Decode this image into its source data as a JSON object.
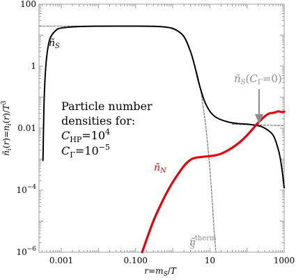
{
  "chart_data": {
    "type": "line",
    "xscale": "log",
    "yscale": "log",
    "xlim": [
      0.00025,
      1000
    ],
    "ylim": [
      1e-06,
      100
    ],
    "xlabel": "r=m_S/T",
    "ylabel": "ñ_i(r)=n_i(r)/T^3",
    "x_tick_labels": [
      {
        "v": 0.001,
        "label": "0.001"
      },
      {
        "v": 0.1,
        "label": "0.100"
      },
      {
        "v": 10,
        "label": "10"
      },
      {
        "v": 1000,
        "label": "1000"
      }
    ],
    "y_tick_labels": [
      {
        "v": 100,
        "label": "100"
      },
      {
        "v": 1,
        "label": "1"
      },
      {
        "v": 0.01,
        "label": "0.01"
      },
      {
        "v": 0.0001,
        "label": "10^{-4}"
      },
      {
        "v": 1e-06,
        "label": "10^{-6}"
      }
    ],
    "annotation": {
      "lines": [
        "Particle number",
        "densities for:"
      ],
      "chp": "C_HP=10^4",
      "cgamma": "C_Γ=10^{-5}"
    },
    "labels": {
      "nS": "ñ_S",
      "nN": "ñ_N",
      "nS_cgamma0": "ñ_S(C_Γ=0)",
      "nS_therm": "ñ_S^therm"
    },
    "colors": {
      "nS": "#000000",
      "nN": "#e8000b",
      "dashed": "#7f7f7f",
      "arrow": "#8c8c8c"
    },
    "series": [
      {
        "name": "ñ_S",
        "color": "#000000",
        "points": [
          [
            0.00032,
            0.0009
          ],
          [
            0.00034,
            0.05
          ],
          [
            0.00037,
            0.6
          ],
          [
            0.00042,
            3
          ],
          [
            0.0005,
            8
          ],
          [
            0.0007,
            14
          ],
          [
            0.001,
            17
          ],
          [
            0.003,
            19
          ],
          [
            0.01,
            19.5
          ],
          [
            0.1,
            19.6
          ],
          [
            0.3,
            19.3
          ],
          [
            0.7,
            18
          ],
          [
            1.2,
            15
          ],
          [
            2,
            9
          ],
          [
            3,
            3
          ],
          [
            4,
            0.9
          ],
          [
            5,
            0.3
          ],
          [
            7,
            0.08
          ],
          [
            10,
            0.035
          ],
          [
            15,
            0.022
          ],
          [
            30,
            0.016
          ],
          [
            60,
            0.014
          ],
          [
            100,
            0.0135
          ],
          [
            200,
            0.012
          ],
          [
            300,
            0.01
          ],
          [
            500,
            0.006
          ],
          [
            700,
            0.002
          ],
          [
            850,
            0.0006
          ],
          [
            1000,
            0.00012
          ]
        ]
      },
      {
        "name": "ñ_N",
        "color": "#e8000b",
        "points": [
          [
            0.15,
            1e-06
          ],
          [
            0.3,
            1e-05
          ],
          [
            0.6,
            6e-05
          ],
          [
            1,
            0.00018
          ],
          [
            2,
            0.0006
          ],
          [
            3,
            0.00095
          ],
          [
            4,
            0.0011
          ],
          [
            6,
            0.00118
          ],
          [
            10,
            0.00125
          ],
          [
            15,
            0.00135
          ],
          [
            20,
            0.0015
          ],
          [
            30,
            0.0019
          ],
          [
            50,
            0.0028
          ],
          [
            80,
            0.0045
          ],
          [
            120,
            0.0075
          ],
          [
            200,
            0.015
          ],
          [
            300,
            0.024
          ],
          [
            400,
            0.03
          ],
          [
            500,
            0.031
          ],
          [
            600,
            0.033
          ],
          [
            700,
            0.035
          ],
          [
            850,
            0.033
          ],
          [
            1000,
            0.034
          ]
        ]
      },
      {
        "name": "ñ_S(C_Γ=0)",
        "color": "#7f7f7f",
        "dashed": true,
        "points": [
          [
            40,
            0.0135
          ],
          [
            100,
            0.013
          ],
          [
            300,
            0.0125
          ],
          [
            1000,
            0.012
          ]
        ]
      },
      {
        "name": "ñ_S^therm",
        "color": "#7f7f7f",
        "dashed": true,
        "points": [
          [
            0.00026,
            19.6
          ],
          [
            0.001,
            19.6
          ],
          [
            0.1,
            19.6
          ],
          [
            0.5,
            19
          ],
          [
            1,
            16
          ],
          [
            2,
            9
          ],
          [
            3,
            3
          ],
          [
            5,
            0.35
          ],
          [
            7,
            0.03
          ],
          [
            9,
            0.002
          ],
          [
            11,
            0.0001
          ],
          [
            13,
            5e-06
          ],
          [
            14.5,
            1e-06
          ]
        ]
      }
    ]
  }
}
